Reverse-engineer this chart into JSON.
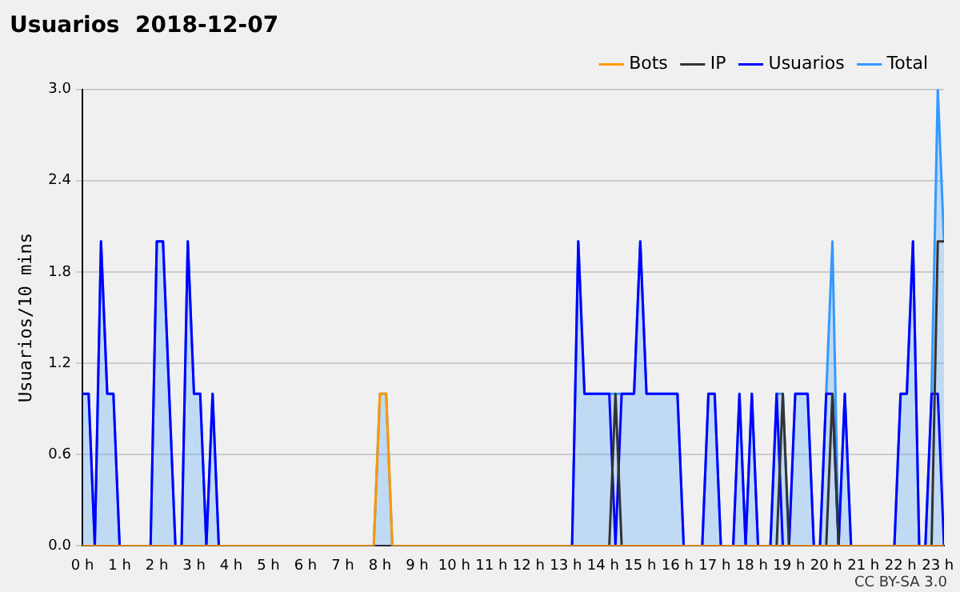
{
  "chart_data": {
    "type": "line",
    "title": "Usuarios  2018-12-07",
    "ylabel": "Usuarios/10 mins",
    "annotations": [
      "CC BY-SA 3.0"
    ],
    "xlim": [
      0,
      23.167
    ],
    "xticks": [
      {
        "value": 0,
        "label": "0 h"
      },
      {
        "value": 1,
        "label": "1 h"
      },
      {
        "value": 2,
        "label": "2 h"
      },
      {
        "value": 3,
        "label": "3 h"
      },
      {
        "value": 4,
        "label": "4 h"
      },
      {
        "value": 5,
        "label": "5 h"
      },
      {
        "value": 6,
        "label": "6 h"
      },
      {
        "value": 7,
        "label": "7 h"
      },
      {
        "value": 8,
        "label": "8 h"
      },
      {
        "value": 9,
        "label": "9 h"
      },
      {
        "value": 10,
        "label": "10 h"
      },
      {
        "value": 11,
        "label": "11 h"
      },
      {
        "value": 12,
        "label": "12 h"
      },
      {
        "value": 13,
        "label": "13 h"
      },
      {
        "value": 14,
        "label": "14 h"
      },
      {
        "value": 15,
        "label": "15 h"
      },
      {
        "value": 16,
        "label": "16 h"
      },
      {
        "value": 17,
        "label": "17 h"
      },
      {
        "value": 18,
        "label": "18 h"
      },
      {
        "value": 19,
        "label": "19 h"
      },
      {
        "value": 20,
        "label": "20 h"
      },
      {
        "value": 21,
        "label": "21 h"
      },
      {
        "value": 22,
        "label": "22 h"
      },
      {
        "value": 23,
        "label": "23 h"
      }
    ],
    "ylim": [
      0,
      3
    ],
    "yticks": [
      {
        "value": 0,
        "label": "0.0"
      },
      0.6,
      1.2,
      1.8,
      2.4,
      {
        "value": 3,
        "label": "3.0"
      }
    ],
    "grid": "y",
    "legend": "top right",
    "marker": "none",
    "series": [
      {
        "name": "Total",
        "type": "area",
        "color": "#3399ff",
        "x": [
          0,
          0.167,
          0.333,
          0.5,
          0.667,
          0.833,
          1.0,
          1.833,
          2.0,
          2.167,
          2.5,
          2.667,
          2.833,
          3.0,
          3.167,
          3.333,
          3.5,
          3.667,
          7.833,
          8.0,
          8.167,
          8.333,
          13.167,
          13.333,
          13.5,
          14.167,
          14.333,
          14.5,
          14.833,
          15.0,
          15.167,
          16.0,
          16.167,
          16.667,
          16.833,
          17.0,
          17.167,
          17.5,
          17.667,
          17.833,
          18.0,
          18.167,
          18.5,
          18.667,
          18.833,
          19.0,
          19.167,
          19.5,
          19.667,
          19.833,
          20.0,
          20.167,
          20.333,
          20.5,
          20.667,
          21.833,
          22.0,
          22.167,
          22.333,
          22.5,
          22.667,
          22.833,
          23.0,
          23.167
        ],
        "values": [
          1,
          1,
          0,
          2,
          1,
          1,
          0,
          0,
          2,
          2,
          0,
          0,
          2,
          1,
          1,
          0,
          1,
          0,
          0,
          1,
          1,
          0,
          0,
          2,
          1,
          1,
          1,
          1,
          1,
          2,
          1,
          1,
          0,
          0,
          1,
          1,
          0,
          0,
          1,
          0,
          1,
          0,
          0,
          1,
          1,
          0,
          1,
          1,
          0,
          0,
          1,
          2,
          0,
          1,
          0,
          0,
          1,
          1,
          2,
          0,
          0,
          1,
          3,
          2
        ]
      },
      {
        "name": "Usuarios",
        "color": "#0000ff",
        "x": [
          0,
          0.167,
          0.333,
          0.5,
          0.667,
          0.833,
          1.0,
          1.833,
          2.0,
          2.167,
          2.5,
          2.667,
          2.833,
          3.0,
          3.167,
          3.333,
          3.5,
          3.667,
          13.167,
          13.333,
          13.5,
          14.167,
          14.333,
          14.5,
          14.833,
          15.0,
          15.167,
          16.0,
          16.167,
          16.667,
          16.833,
          17.0,
          17.167,
          17.5,
          17.667,
          17.833,
          18.0,
          18.167,
          18.5,
          18.667,
          18.833,
          19.0,
          19.167,
          19.5,
          19.667,
          19.833,
          20.0,
          20.167,
          20.333,
          20.5,
          20.667,
          21.833,
          22.0,
          22.167,
          22.333,
          22.5,
          22.667,
          22.833,
          23.0,
          23.167
        ],
        "values": [
          1,
          1,
          0,
          2,
          1,
          1,
          0,
          0,
          2,
          2,
          0,
          0,
          2,
          1,
          1,
          0,
          1,
          0,
          0,
          2,
          1,
          1,
          0,
          1,
          1,
          2,
          1,
          1,
          0,
          0,
          1,
          1,
          0,
          0,
          1,
          0,
          1,
          0,
          0,
          1,
          0,
          0,
          1,
          1,
          0,
          0,
          1,
          1,
          0,
          1,
          0,
          0,
          1,
          1,
          2,
          0,
          0,
          1,
          1,
          0
        ]
      },
      {
        "name": "IP",
        "color": "#333333",
        "x": [
          0,
          14.167,
          14.333,
          14.5,
          18.667,
          18.833,
          19.0,
          20.0,
          20.167,
          20.333,
          22.833,
          23.0,
          23.167
        ],
        "values": [
          0,
          0,
          1,
          0,
          0,
          1,
          0,
          0,
          1,
          0,
          0,
          2,
          2
        ]
      },
      {
        "name": "Bots",
        "color": "#ff9900",
        "x": [
          0,
          7.833,
          8.0,
          8.167,
          8.333,
          23.167
        ],
        "values": [
          0,
          0,
          1,
          1,
          0,
          0
        ]
      }
    ]
  }
}
